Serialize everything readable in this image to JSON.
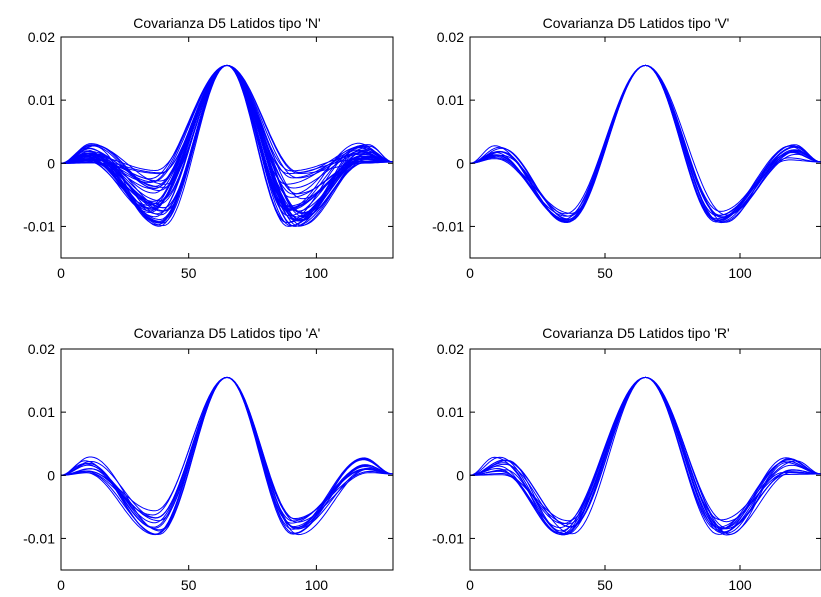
{
  "figure": {
    "chart_data": [
      {
        "type": "line",
        "title": "Covarianza D5 Latidos tipo 'N'",
        "xlim": [
          0,
          130
        ],
        "ylim": [
          -0.015,
          0.02
        ],
        "xticks": [
          0,
          50,
          100
        ],
        "xtick_labels": [
          "0",
          "50",
          "100"
        ],
        "yticks": [
          -0.01,
          0,
          0.01,
          0.02
        ],
        "ytick_labels": [
          "-0.01",
          "0",
          "0.01",
          "0.02"
        ],
        "line_color": "#0000ff",
        "series_count": 40,
        "shape": {
          "peak_x": 65,
          "peak_y": 0.0155,
          "trough_left_x": [
            34,
            41
          ],
          "trough_right_x": [
            88,
            95
          ],
          "trough_y": [
            -0.01,
            -0.001
          ],
          "side_bump_x": [
            9,
            14
          ],
          "side_bump_y": [
            0.0,
            0.0032
          ]
        }
      },
      {
        "type": "line",
        "title": "Covarianza D5 Latidos tipo 'V'",
        "xlim": [
          0,
          130
        ],
        "ylim": [
          -0.015,
          0.02
        ],
        "xticks": [
          0,
          50,
          100
        ],
        "xtick_labels": [
          "0",
          "50",
          "100"
        ],
        "yticks": [
          -0.01,
          0,
          0.01,
          0.02
        ],
        "ytick_labels": [
          "-0.01",
          "0",
          "0.01",
          "0.02"
        ],
        "line_color": "#0000ff",
        "series_count": 14,
        "shape": {
          "peak_x": 65,
          "peak_y": 0.0155,
          "trough_left_x": [
            35,
            38
          ],
          "trough_right_x": [
            91,
            95
          ],
          "trough_y": [
            -0.0094,
            -0.0075
          ],
          "side_bump_x": [
            9,
            12
          ],
          "side_bump_y": [
            0.0005,
            0.003
          ]
        }
      },
      {
        "type": "line",
        "title": "Covarianza D5 Latidos tipo 'A'",
        "xlim": [
          0,
          130
        ],
        "ylim": [
          -0.015,
          0.02
        ],
        "xticks": [
          0,
          50,
          100
        ],
        "xtick_labels": [
          "0",
          "50",
          "100"
        ],
        "yticks": [
          -0.01,
          0,
          0.01,
          0.02
        ],
        "ytick_labels": [
          "-0.01",
          "0",
          "0.01",
          "0.02"
        ],
        "line_color": "#0000ff",
        "series_count": 14,
        "shape": {
          "peak_x": 65,
          "peak_y": 0.0155,
          "trough_left_x": [
            36,
            39
          ],
          "trough_right_x": [
            90,
            93
          ],
          "trough_y": [
            -0.0094,
            -0.0055
          ],
          "side_bump_x": [
            9,
            12
          ],
          "side_bump_y": [
            0.0004,
            0.003
          ]
        }
      },
      {
        "type": "line",
        "title": "Covarianza D5 Latidos tipo 'R'",
        "xlim": [
          0,
          130
        ],
        "ylim": [
          -0.015,
          0.02
        ],
        "xticks": [
          0,
          50,
          100
        ],
        "xtick_labels": [
          "0",
          "50",
          "100"
        ],
        "yticks": [
          -0.01,
          0,
          0.01,
          0.02
        ],
        "ytick_labels": [
          "-0.01",
          "0",
          "0.01",
          "0.02"
        ],
        "line_color": "#0000ff",
        "series_count": 14,
        "shape": {
          "peak_x": 65,
          "peak_y": 0.0155,
          "trough_left_x": [
            33,
            38
          ],
          "trough_right_x": [
            91,
            97
          ],
          "trough_y": [
            -0.0095,
            -0.007
          ],
          "side_bump_x": [
            9,
            14
          ],
          "side_bump_y": [
            0.0,
            0.003
          ]
        }
      }
    ]
  }
}
